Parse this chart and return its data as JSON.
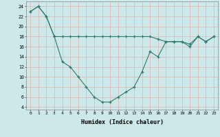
{
  "xlabel": "Humidex (Indice chaleur)",
  "background_color": "#cce8e8",
  "grid_color": "#e0b8b8",
  "line_color": "#2e7a6a",
  "x": [
    0,
    1,
    2,
    3,
    4,
    5,
    6,
    7,
    8,
    9,
    10,
    11,
    12,
    13,
    14,
    15,
    16,
    17,
    18,
    19,
    20,
    21,
    22,
    23
  ],
  "line1": [
    23,
    24,
    22,
    18,
    18,
    18,
    18,
    18,
    18,
    18,
    18,
    18,
    18,
    18,
    18,
    18,
    17.5,
    17,
    17,
    17,
    16.5,
    18,
    17,
    18
  ],
  "line2": [
    23,
    24,
    22,
    18,
    13,
    12,
    10,
    8,
    6,
    5,
    5,
    6,
    7,
    8,
    11,
    15,
    14,
    17,
    17,
    17,
    16,
    18,
    17,
    18
  ],
  "ylim": [
    3.5,
    25
  ],
  "xlim": [
    -0.5,
    23.5
  ],
  "yticks": [
    4,
    6,
    8,
    10,
    12,
    14,
    16,
    18,
    20,
    22,
    24
  ],
  "xticks": [
    0,
    1,
    2,
    3,
    4,
    5,
    6,
    7,
    8,
    9,
    10,
    11,
    12,
    13,
    14,
    15,
    16,
    17,
    18,
    19,
    20,
    21,
    22,
    23
  ]
}
